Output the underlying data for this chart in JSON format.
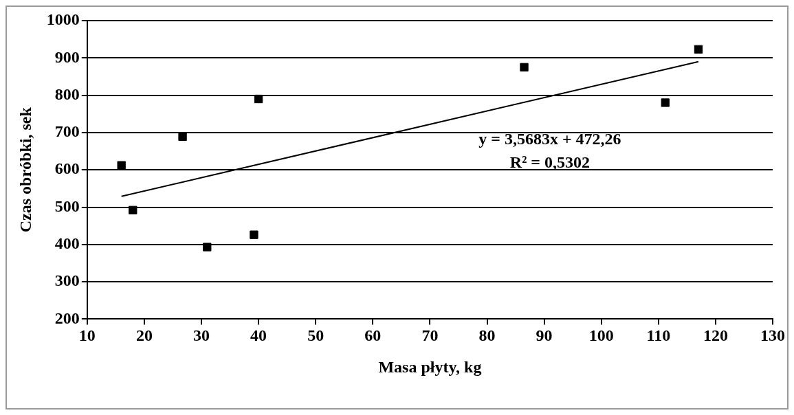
{
  "chart_data": {
    "type": "scatter",
    "xlabel": "Masa płyty, kg",
    "ylabel": "Czas obróbki, sek",
    "x": [
      16,
      18,
      26.7,
      31,
      39.2,
      40,
      86.5,
      111.2,
      117
    ],
    "series": [
      {
        "color": "#000000",
        "marker": "square",
        "values": [
          612,
          492,
          689,
          393,
          426,
          790,
          875,
          780,
          923
        ]
      },
      {
        "type": "line",
        "color": "#000000",
        "marker": "none",
        "x": [
          16,
          117
        ],
        "values": [
          529,
          890
        ]
      }
    ],
    "xlim": [
      10,
      130
    ],
    "xticks": [
      10,
      20,
      30,
      40,
      50,
      60,
      70,
      80,
      90,
      100,
      110,
      120,
      130
    ],
    "ylim": [
      200,
      1000
    ],
    "yticks": [
      200,
      300,
      400,
      500,
      600,
      700,
      800,
      900,
      1000
    ],
    "grid": "y",
    "legend": false,
    "line_style": "solid",
    "annotations": [
      "y = 3,5683x + 472,26",
      "R² = 0,5302"
    ]
  }
}
